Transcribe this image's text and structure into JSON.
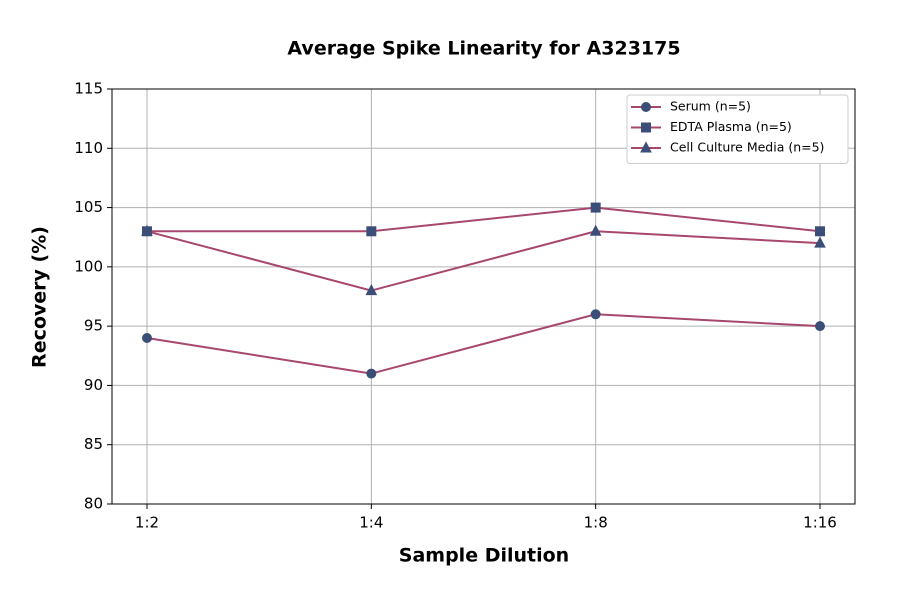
{
  "chart_data": {
    "type": "line",
    "title": "Average Spike Linearity for A323175",
    "xlabel": "Sample Dilution",
    "ylabel": "Recovery (%)",
    "categories": [
      "1:2",
      "1:4",
      "1:8",
      "1:16"
    ],
    "series": [
      {
        "name": "Serum (n=5)",
        "color": "#a8476e",
        "marker_color": "#3b4e78",
        "marker": "circle",
        "values": [
          94,
          91,
          96,
          95
        ]
      },
      {
        "name": "EDTA Plasma (n=5)",
        "color": "#a8476e",
        "marker_color": "#3b4e78",
        "marker": "square",
        "values": [
          103,
          103,
          105,
          103
        ]
      },
      {
        "name": "Cell Culture Media (n=5)",
        "color": "#a8476e",
        "marker_color": "#3b4e78",
        "marker": "triangle",
        "values": [
          103,
          98,
          103,
          102
        ]
      }
    ],
    "ylim": [
      80,
      115
    ],
    "yticks": [
      80,
      85,
      90,
      95,
      100,
      105,
      110,
      115
    ],
    "grid": true,
    "legend": "upper right"
  }
}
